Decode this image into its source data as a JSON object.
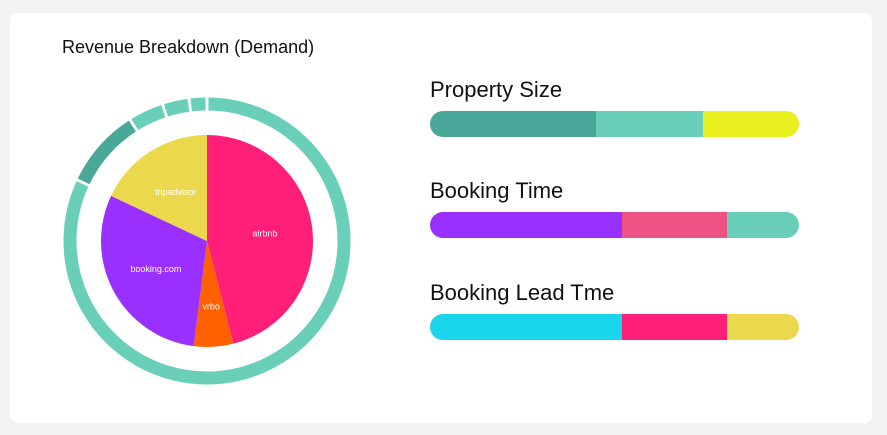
{
  "header": {
    "title": "Revenue Breakdown (Demand)"
  },
  "chart_data": [
    {
      "type": "pie",
      "title": "Revenue Breakdown (Demand)",
      "slices": [
        {
          "label": "airbnb",
          "value": 46,
          "color": "#ff1f78"
        },
        {
          "label": "vrbo",
          "value": 6,
          "color": "#ff6000"
        },
        {
          "label": "booking.com",
          "value": 30,
          "color": "#9a30ff"
        },
        {
          "label": "tripadvisor",
          "value": 18,
          "color": "#ecd84c"
        }
      ],
      "outer_ring": [
        {
          "value": 82,
          "color": "#6acfb8"
        },
        {
          "value": 9,
          "color": "#4aa89a"
        },
        {
          "value": 4,
          "color": "#6acfb8"
        },
        {
          "value": 3,
          "color": "#6acfb8"
        },
        {
          "value": 2,
          "color": "#6acfb8"
        }
      ]
    },
    {
      "type": "bar",
      "title": "Property Size",
      "segments": [
        {
          "value": 45,
          "color": "#4aa89a"
        },
        {
          "value": 29,
          "color": "#6acfb8"
        },
        {
          "value": 26,
          "color": "#e9ee1f"
        }
      ]
    },
    {
      "type": "bar",
      "title": "Booking Time",
      "segments": [
        {
          "value": 52,
          "color": "#9a30ff"
        },
        {
          "value": 28.5,
          "color": "#ee5282"
        },
        {
          "value": 19.5,
          "color": "#6acfb8"
        }
      ]
    },
    {
      "type": "bar",
      "title": "Booking Lead Tme",
      "segments": [
        {
          "value": 52,
          "color": "#1ad6ec"
        },
        {
          "value": 28.5,
          "color": "#ff1f78"
        },
        {
          "value": 19.5,
          "color": "#ecd84c"
        }
      ]
    }
  ]
}
